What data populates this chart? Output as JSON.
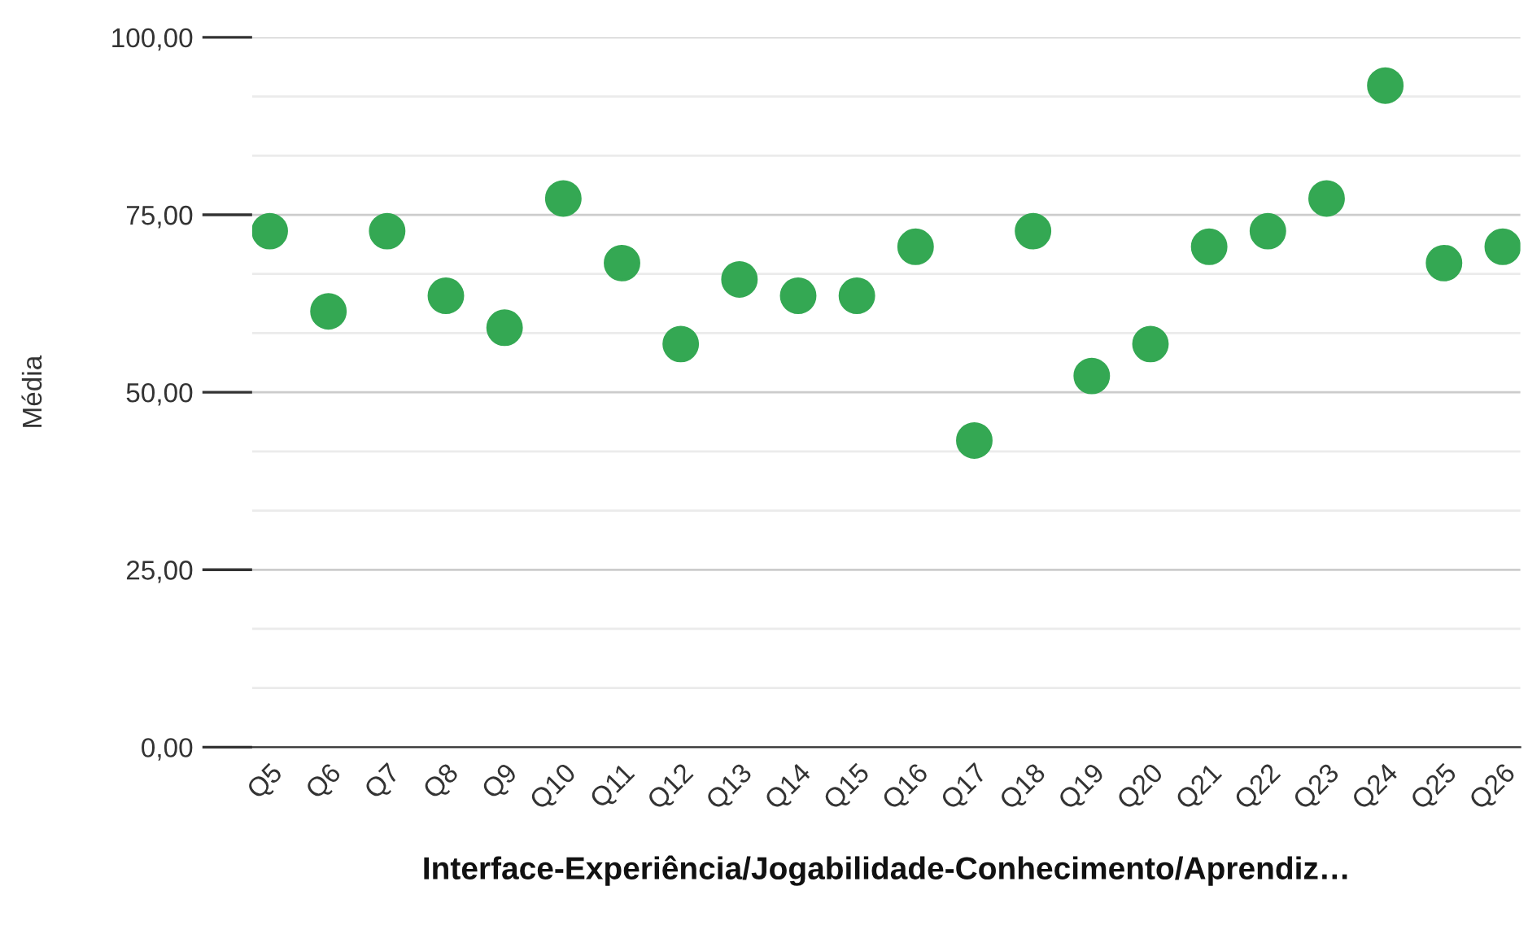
{
  "chart_data": {
    "type": "scatter",
    "xlabel": "Interface-Experiência/Jogabilidade-Conhecimento/Aprendiz…",
    "ylabel": "Média",
    "categories": [
      "Q5",
      "Q6",
      "Q7",
      "Q8",
      "Q9",
      "Q10",
      "Q11",
      "Q12",
      "Q13",
      "Q14",
      "Q15",
      "Q16",
      "Q17",
      "Q18",
      "Q19",
      "Q20",
      "Q21",
      "Q22",
      "Q23",
      "Q24",
      "Q25",
      "Q26"
    ],
    "series": [
      {
        "color": "#34a853",
        "values": [
          72.7,
          61.4,
          72.7,
          63.6,
          59.1,
          77.3,
          68.2,
          56.8,
          65.9,
          63.6,
          63.6,
          70.5,
          43.2,
          72.7,
          52.3,
          56.8,
          70.5,
          72.7,
          77.3,
          93.2,
          68.2,
          70.5
        ]
      }
    ],
    "ylim": [
      0,
      100
    ],
    "yticks": [
      {
        "value": 0,
        "label": "0,00"
      },
      {
        "value": 8.33,
        "label": null
      },
      {
        "value": 16.67,
        "label": null
      },
      {
        "value": 25,
        "label": "25,00"
      },
      {
        "value": 33.33,
        "label": null
      },
      {
        "value": 41.67,
        "label": null
      },
      {
        "value": 50,
        "label": "50,00"
      },
      {
        "value": 58.33,
        "label": null
      },
      {
        "value": 66.67,
        "label": null
      },
      {
        "value": 75,
        "label": "75,00"
      },
      {
        "value": 83.33,
        "label": null
      },
      {
        "value": 91.67,
        "label": null
      },
      {
        "value": 100,
        "label": "100,00"
      }
    ],
    "grid": "y",
    "marker": "circle",
    "legend": false
  }
}
